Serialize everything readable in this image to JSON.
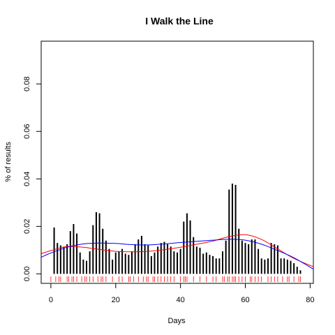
{
  "chart_data": {
    "type": "bar",
    "title": "I Walk the Line",
    "xlabel": "Days",
    "ylabel": "% of results",
    "xlim": [
      -3,
      81
    ],
    "ylim": [
      -0.004,
      0.098
    ],
    "x_ticks": [
      0,
      20,
      40,
      60,
      80
    ],
    "y_ticks": [
      0.0,
      0.02,
      0.04,
      0.06,
      0.08
    ],
    "x_tick_labels": [
      "0",
      "20",
      "40",
      "60",
      "80"
    ],
    "y_tick_labels": [
      "0.00",
      "0.02",
      "0.04",
      "0.06",
      "0.08"
    ],
    "grid": false,
    "bars": {
      "x": [
        1,
        2,
        3,
        4,
        5,
        6,
        7,
        8,
        9,
        10,
        11,
        12,
        13,
        14,
        15,
        16,
        17,
        18,
        19,
        20,
        21,
        22,
        23,
        24,
        25,
        26,
        27,
        28,
        29,
        30,
        31,
        32,
        33,
        34,
        35,
        36,
        37,
        38,
        39,
        40,
        41,
        42,
        43,
        44,
        45,
        46,
        47,
        48,
        49,
        50,
        51,
        52,
        53,
        54,
        55,
        56,
        57,
        58,
        59,
        60,
        61,
        62,
        63,
        64,
        65,
        66,
        67,
        68,
        69,
        70,
        71,
        72,
        73,
        74,
        75,
        76,
        77
      ],
      "values": [
        0.0195,
        0.013,
        0.012,
        0.0115,
        0.0125,
        0.018,
        0.021,
        0.017,
        0.009,
        0.006,
        0.0055,
        0.0095,
        0.0205,
        0.026,
        0.0255,
        0.019,
        0.014,
        0.0105,
        0.006,
        0.009,
        0.0095,
        0.0105,
        0.0085,
        0.008,
        0.0095,
        0.0125,
        0.0145,
        0.016,
        0.0125,
        0.012,
        0.0075,
        0.009,
        0.0115,
        0.013,
        0.0135,
        0.0125,
        0.0115,
        0.0095,
        0.009,
        0.0105,
        0.022,
        0.0255,
        0.0225,
        0.0155,
        0.0115,
        0.011,
        0.0085,
        0.009,
        0.008,
        0.0075,
        0.0065,
        0.0065,
        0.0095,
        0.014,
        0.0355,
        0.038,
        0.0375,
        0.019,
        0.014,
        0.013,
        0.0125,
        0.0145,
        0.0145,
        0.0105,
        0.0065,
        0.006,
        0.0065,
        0.013,
        0.0125,
        0.012,
        0.0065,
        0.0065,
        0.006,
        0.0055,
        0.0045,
        0.003,
        0.0015
      ]
    },
    "series": [
      {
        "color": "#ff0000",
        "x": [
          -3,
          0,
          5,
          10,
          15,
          20,
          25,
          30,
          35,
          40,
          45,
          50,
          55,
          60,
          65,
          70,
          75,
          81
        ],
        "y": [
          0.0085,
          0.0098,
          0.0115,
          0.0112,
          0.0103,
          0.0095,
          0.0093,
          0.0095,
          0.0102,
          0.0112,
          0.0125,
          0.0138,
          0.0157,
          0.0165,
          0.0145,
          0.0105,
          0.0065,
          0.003
        ]
      },
      {
        "color": "#0000ff",
        "x": [
          -3,
          0,
          5,
          10,
          15,
          20,
          25,
          30,
          35,
          40,
          45,
          50,
          55,
          60,
          65,
          70,
          75,
          81
        ],
        "y": [
          0.007,
          0.0088,
          0.0112,
          0.0126,
          0.013,
          0.0128,
          0.0123,
          0.0122,
          0.0126,
          0.0132,
          0.0137,
          0.0142,
          0.0146,
          0.0142,
          0.0125,
          0.0098,
          0.0068,
          0.002
        ]
      }
    ],
    "rug": {
      "color": "#ff0000",
      "x": [
        0,
        1.5,
        2.5,
        3,
        5,
        5.5,
        6.5,
        7,
        8,
        9.5,
        10.5,
        11,
        12,
        13,
        14.5,
        15.5,
        16,
        17,
        19,
        21,
        22,
        24,
        24.5,
        25.5,
        27,
        28.5,
        29.5,
        30,
        31.5,
        32,
        33,
        34,
        35,
        36,
        37,
        38,
        40,
        41,
        41.5,
        42,
        44,
        46,
        48,
        50,
        51,
        53,
        53.5,
        54.5,
        55,
        56,
        56.5,
        57,
        58,
        59,
        60,
        61.5,
        62,
        63,
        64,
        65,
        67,
        68,
        69,
        70,
        71.5,
        73,
        73.5,
        75,
        76.5,
        77
      ]
    }
  }
}
